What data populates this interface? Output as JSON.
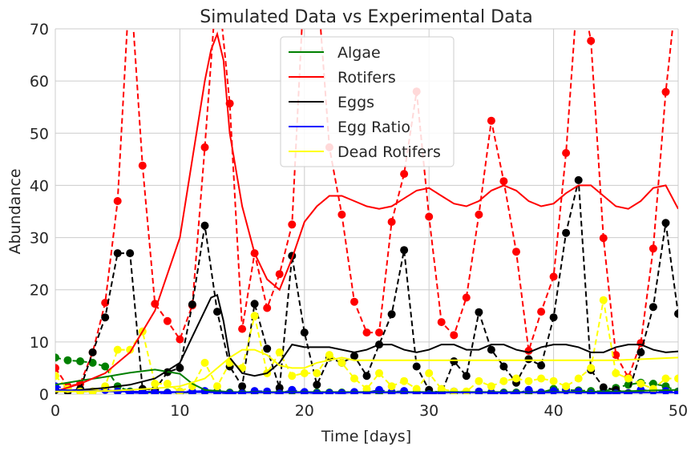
{
  "chart_data": {
    "type": "line",
    "title": "Simulated Data vs Experimental Data",
    "xlabel": "Time [days]",
    "ylabel": "Abundance",
    "xlim": [
      0,
      50
    ],
    "ylim": [
      0,
      70
    ],
    "xticks": [
      "0",
      "10",
      "20",
      "30",
      "40",
      "50"
    ],
    "yticks": [
      "0",
      "10",
      "20",
      "30",
      "40",
      "50",
      "60",
      "70"
    ],
    "grid": true,
    "legend_position": "top-center",
    "simulated_series": [
      {
        "name": "Algae",
        "color": "#008000",
        "x": [
          0,
          2,
          4,
          6,
          8,
          10,
          11,
          12,
          14,
          16,
          18,
          20,
          25,
          30,
          35,
          40,
          45,
          48,
          50
        ],
        "y": [
          1.8,
          2.6,
          3.3,
          4.1,
          4.7,
          3.9,
          2.0,
          0.8,
          0.4,
          0.4,
          0.4,
          0.4,
          0.4,
          0.4,
          0.4,
          0.4,
          0.5,
          0.7,
          0.8
        ]
      },
      {
        "name": "Rotifers",
        "color": "#ff0000",
        "x": [
          0,
          2,
          4,
          6,
          8,
          10,
          11,
          12,
          12.5,
          13,
          13.5,
          14,
          15,
          16,
          17,
          18,
          19,
          20,
          21,
          22,
          23,
          24,
          25,
          26,
          27,
          28,
          29,
          30,
          31,
          32,
          33,
          34,
          35,
          36,
          37,
          38,
          39,
          40,
          41,
          42,
          43,
          44,
          45,
          46,
          47,
          48,
          49,
          50
        ],
        "y": [
          0.5,
          2,
          4,
          8,
          16,
          30,
          45,
          60,
          66,
          69,
          64,
          50,
          36,
          27,
          22,
          20,
          26,
          33,
          36,
          38,
          38,
          37,
          36,
          35.5,
          36,
          37.5,
          39,
          39.5,
          38,
          36.5,
          36,
          37,
          39,
          40,
          39,
          37,
          36,
          36.5,
          38.5,
          40,
          40,
          38,
          36,
          35.5,
          37,
          39.5,
          40,
          35.5
        ]
      },
      {
        "name": "Eggs",
        "color": "#000000",
        "x": [
          0,
          2,
          4,
          6,
          8,
          10,
          11,
          12,
          12.5,
          13,
          13.5,
          14,
          15,
          16,
          17,
          18,
          19,
          20,
          22,
          24,
          25,
          26,
          27,
          28,
          29,
          30,
          31,
          32,
          33,
          34,
          35,
          36,
          37,
          38,
          39,
          40,
          41,
          42,
          43,
          44,
          45,
          46,
          47,
          48,
          49,
          50
        ],
        "y": [
          0.5,
          0.8,
          1.2,
          1.8,
          3,
          6,
          11,
          16,
          18.5,
          19,
          14,
          7,
          4,
          3.5,
          4,
          6,
          9.5,
          9,
          9,
          8,
          8.5,
          9.5,
          9.5,
          8.5,
          8,
          8.5,
          9.5,
          9.5,
          8.5,
          8.5,
          9.5,
          9.5,
          8.5,
          8,
          9,
          9.5,
          9.5,
          9,
          8,
          8,
          9,
          9.5,
          9.5,
          8.5,
          8,
          8.2
        ]
      },
      {
        "name": "Egg Ratio",
        "color": "#0000ff",
        "x": [
          0,
          5,
          10,
          15,
          20,
          25,
          30,
          35,
          40,
          45,
          50
        ],
        "y": [
          0.8,
          0.5,
          0.4,
          0.3,
          0.3,
          0.3,
          0.3,
          0.3,
          0.3,
          0.3,
          0.3
        ]
      },
      {
        "name": "Dead Rotifers",
        "color": "#ffff00",
        "x": [
          0,
          2,
          4,
          6,
          8,
          10,
          12,
          14,
          15,
          16,
          17,
          18,
          19,
          20,
          21,
          22,
          23,
          24,
          26,
          28,
          30,
          35,
          40,
          45,
          50
        ],
        "y": [
          0.5,
          0.5,
          0.6,
          0.8,
          1.1,
          1.5,
          3,
          7,
          8.5,
          8.5,
          7.5,
          5.5,
          5,
          5,
          6,
          6.5,
          7,
          6.5,
          6.5,
          6.5,
          6.5,
          6.5,
          6.5,
          6.5,
          7
        ]
      }
    ],
    "experimental_series": [
      {
        "color": "#008000",
        "x": [
          0,
          1,
          2,
          3,
          4,
          5,
          6,
          7,
          8,
          9,
          10,
          11,
          12,
          13,
          14,
          15,
          16,
          17,
          18,
          19,
          20,
          21,
          22,
          23,
          24,
          25,
          26,
          27,
          28,
          29,
          30,
          31,
          32,
          33,
          34,
          35,
          36,
          37,
          38,
          39,
          40,
          41,
          42,
          43,
          44,
          45,
          46,
          47,
          48,
          49,
          50
        ],
        "y": [
          7,
          6.5,
          6.3,
          6,
          5.3,
          1.5,
          0.5,
          0.3,
          0.3,
          0.3,
          0.3,
          0.3,
          0.5,
          0.5,
          0.3,
          0.3,
          0.3,
          0.3,
          0.3,
          0.5,
          0.3,
          0.3,
          0.3,
          0.3,
          0.3,
          0.3,
          0.3,
          0.3,
          0.3,
          0.3,
          0.3,
          0.3,
          0.3,
          0.3,
          0.3,
          0.3,
          0.3,
          0.3,
          0.3,
          0.3,
          1.0,
          0.8,
          0.7,
          0.6,
          0.5,
          1.2,
          1.8,
          2.2,
          2.0,
          1.5,
          0.5
        ]
      },
      {
        "color": "#ff0000",
        "x": [
          0,
          1,
          2,
          3,
          4,
          5,
          6,
          7,
          8,
          9,
          10,
          11,
          12,
          13,
          14,
          15,
          16,
          17,
          18,
          19,
          20,
          21,
          22,
          23,
          24,
          25,
          26,
          27,
          28,
          29,
          30,
          31,
          32,
          33,
          34,
          35,
          36,
          37,
          38,
          39,
          40,
          41,
          42,
          43,
          44,
          45,
          46,
          47,
          48,
          49,
          50
        ],
        "y": [
          5,
          1.5,
          2,
          8,
          17.5,
          37,
          80,
          43.8,
          17.3,
          14,
          10.5,
          17,
          47.3,
          80,
          55.7,
          12.5,
          27,
          16.5,
          23,
          32.5,
          80,
          80,
          47.3,
          34.4,
          17.7,
          11.8,
          11.8,
          33,
          42.2,
          58,
          34,
          13.8,
          11.3,
          18.5,
          34.4,
          52.4,
          40.8,
          27.3,
          8.3,
          15.8,
          22.5,
          46.2,
          80,
          67.7,
          29.9,
          7.5,
          3.2,
          9.8,
          27.9,
          57.9,
          80
        ]
      },
      {
        "color": "#000000",
        "x": [
          0,
          1,
          2,
          3,
          4,
          5,
          6,
          7,
          8,
          9,
          10,
          11,
          12,
          13,
          14,
          15,
          16,
          17,
          18,
          19,
          20,
          21,
          22,
          23,
          24,
          25,
          26,
          27,
          28,
          29,
          30,
          31,
          32,
          33,
          34,
          35,
          36,
          37,
          38,
          39,
          40,
          41,
          42,
          43,
          44,
          45,
          46,
          47,
          48,
          49,
          50
        ],
        "y": [
          0.8,
          0.5,
          1.0,
          8.0,
          14.7,
          27.0,
          27.0,
          1.0,
          0.8,
          4.2,
          5.0,
          17.2,
          32.3,
          15.8,
          5.3,
          1.5,
          17.3,
          8.7,
          1.2,
          26.5,
          11.8,
          1.8,
          7.0,
          6.0,
          7.3,
          3.5,
          9.5,
          15.3,
          27.6,
          5.3,
          0.8,
          0.2,
          6.3,
          3.5,
          15.7,
          8.5,
          5.3,
          2.2,
          6.7,
          5.5,
          14.7,
          30.9,
          41.0,
          4.6,
          1.3,
          0.8,
          0.2,
          8.0,
          16.7,
          32.8,
          15.4
        ]
      },
      {
        "color": "#0000ff",
        "x": [
          0,
          1,
          2,
          3,
          4,
          5,
          6,
          7,
          8,
          9,
          10,
          11,
          12,
          13,
          14,
          15,
          16,
          17,
          18,
          19,
          20,
          21,
          22,
          23,
          24,
          25,
          26,
          27,
          28,
          29,
          30,
          31,
          32,
          33,
          34,
          35,
          36,
          37,
          38,
          39,
          40,
          41,
          42,
          43,
          44,
          45,
          46,
          47,
          48,
          49,
          50
        ],
        "y": [
          1.5,
          1.0,
          0.5,
          0.5,
          0.8,
          0.5,
          0.3,
          0.2,
          0.2,
          0.2,
          0.5,
          0.5,
          0.6,
          0.3,
          0.1,
          0.1,
          0.6,
          0.5,
          0.1,
          0.8,
          0.4,
          0.1,
          0.2,
          0.2,
          0.4,
          0.3,
          0.8,
          0.4,
          0.6,
          0.1,
          0.0,
          0.1,
          0.5,
          0.2,
          0.5,
          0.2,
          0.1,
          0.1,
          0.8,
          0.3,
          0.6,
          0.7,
          0.5,
          0.1,
          0.0,
          0.1,
          0.1,
          0.8,
          0.6,
          0.6,
          0.3
        ]
      },
      {
        "color": "#ffff00",
        "x": [
          0,
          1,
          2,
          3,
          4,
          5,
          6,
          7,
          8,
          9,
          10,
          11,
          12,
          13,
          14,
          15,
          16,
          17,
          18,
          19,
          20,
          21,
          22,
          23,
          24,
          25,
          26,
          27,
          28,
          29,
          30,
          31,
          32,
          33,
          34,
          35,
          36,
          37,
          38,
          39,
          40,
          41,
          42,
          43,
          44,
          45,
          46,
          47,
          48,
          49,
          50
        ],
        "y": [
          3.5,
          1.0,
          0.5,
          0.5,
          1.5,
          8.5,
          8.5,
          12.0,
          2.0,
          2.0,
          0.5,
          1.5,
          6.0,
          1.5,
          6.0,
          5.0,
          15.0,
          4.0,
          8.0,
          3.5,
          4.0,
          4.0,
          7.5,
          6.0,
          3.0,
          1.0,
          4.0,
          1.5,
          2.5,
          1.0,
          4.0,
          1.0,
          0.5,
          0.5,
          2.5,
          1.5,
          2.5,
          3.0,
          2.5,
          3.0,
          2.5,
          1.5,
          3.0,
          5.0,
          18.0,
          4.0,
          3.0,
          2.0,
          1.0,
          3.0,
          3.0
        ]
      }
    ]
  }
}
